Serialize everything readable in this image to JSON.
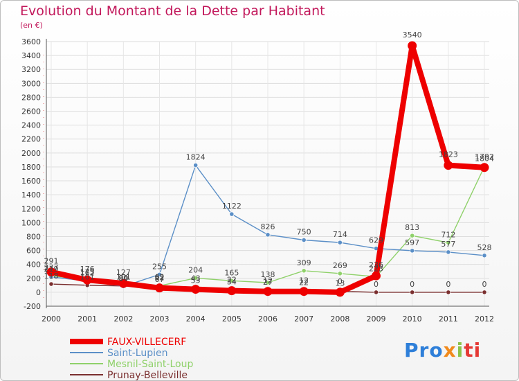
{
  "chart_data": {
    "type": "line",
    "title": "Evolution du Montant de la Dette par Habitant",
    "subtitle": "(en €)",
    "x": [
      "2000",
      "2001",
      "2002",
      "2003",
      "2004",
      "2005",
      "2006",
      "2007",
      "2008",
      "2009",
      "2010",
      "2011",
      "2012"
    ],
    "ylim": [
      -200,
      3600
    ],
    "yticks": [
      -200,
      0,
      200,
      400,
      600,
      800,
      1000,
      1200,
      1400,
      1600,
      1800,
      2000,
      2200,
      2400,
      2600,
      2800,
      3000,
      3200,
      3400,
      3600
    ],
    "grid": true,
    "legend_position": "bottom-left",
    "series": [
      {
        "name": "FAUX-VILLECERF",
        "color": "#ee0000",
        "values": [
          291,
          176,
          127,
          62,
          43,
          22,
          12,
          12,
          0,
          236,
          3540,
          1823,
          1792
        ]
      },
      {
        "name": "Saint-Lupien",
        "color": "#5b8fc7",
        "values": [
          219,
          162,
          84,
          255,
          1824,
          1122,
          826,
          750,
          714,
          629,
          597,
          577,
          528
        ]
      },
      {
        "name": "Mesnil-Saint-Loup",
        "color": "#8fd16a",
        "values": [
          237,
          175,
          101,
          92,
          204,
          165,
          138,
          309,
          269,
          223,
          813,
          712,
          1804
        ]
      },
      {
        "name": "Prunay-Belleville",
        "color": "#7a2f2f",
        "values": [
          118,
          101,
          90,
          67,
          53,
          34,
          27,
          22,
          13,
          0,
          0,
          0,
          0
        ]
      }
    ]
  },
  "logo": {
    "text": "Proxiti"
  }
}
